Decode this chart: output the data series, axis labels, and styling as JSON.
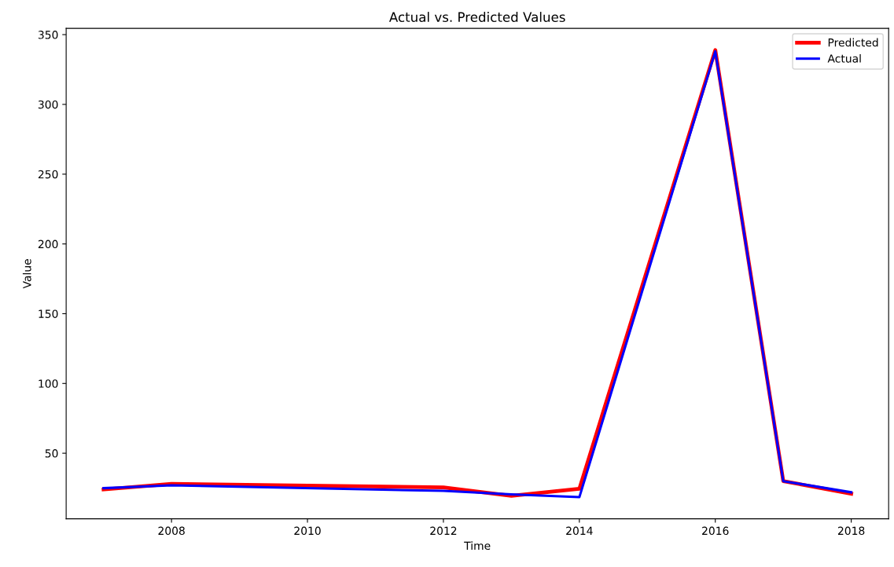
{
  "chart_data": {
    "type": "line",
    "title": "Actual vs. Predicted Values",
    "xlabel": "Time",
    "ylabel": "Value",
    "x": [
      2007,
      2008,
      2012,
      2013,
      2014,
      2016,
      2017,
      2018
    ],
    "series": [
      {
        "name": "Predicted",
        "color": "#ff0000",
        "values": [
          24,
          28,
          25.5,
          19.5,
          24.5,
          339,
          30,
          21
        ]
      },
      {
        "name": "Actual",
        "color": "#0000ff",
        "values": [
          25,
          27,
          23,
          20.5,
          18.5,
          338,
          30,
          22
        ]
      }
    ],
    "xlim": [
      2006.45,
      2018.55
    ],
    "ylim": [
      3,
      354.5
    ],
    "xticks": [
      2008,
      2010,
      2012,
      2014,
      2016,
      2018
    ],
    "yticks": [
      50,
      100,
      150,
      200,
      250,
      300,
      350
    ],
    "legend": "top right",
    "grid": false
  }
}
